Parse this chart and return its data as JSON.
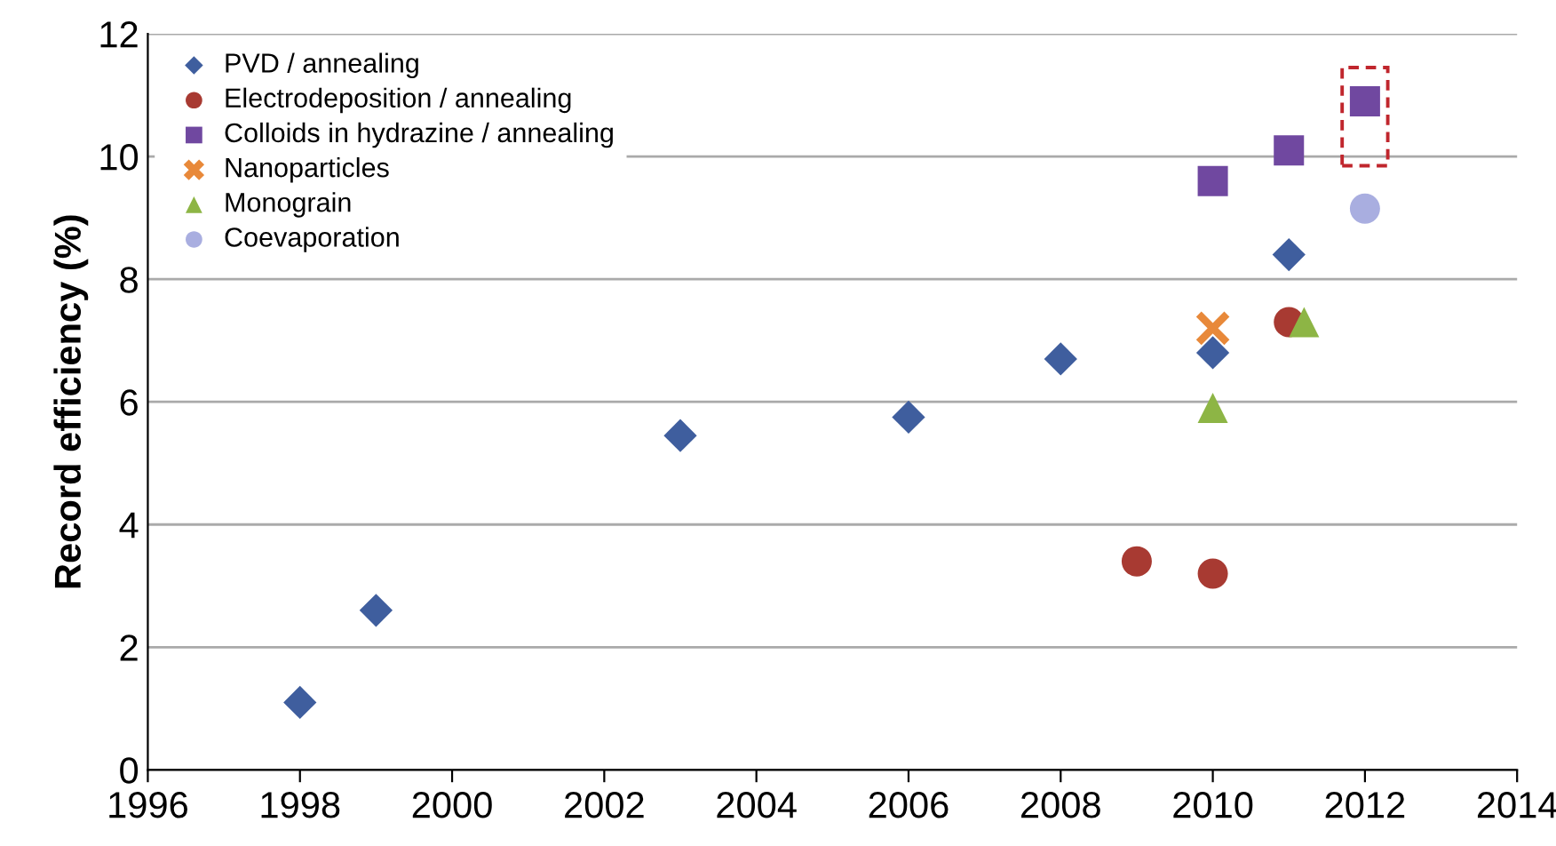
{
  "chart_data": {
    "type": "scatter",
    "ylabel": "Record efficiency (%)",
    "xlim": [
      1996,
      2014
    ],
    "xticks": [
      1996,
      1998,
      2000,
      2002,
      2004,
      2006,
      2008,
      2010,
      2012,
      2014
    ],
    "ylim": [
      0,
      12
    ],
    "yticks": [
      0,
      2,
      4,
      6,
      8,
      10,
      12
    ],
    "grid": "y",
    "legend": "top left",
    "series": [
      {
        "name": "PVD / annealing",
        "color": "#3f5e9e",
        "marker": "diamond",
        "x": [
          1998,
          1999,
          2003,
          2006,
          2008,
          2010,
          2011
        ],
        "values": [
          1.1,
          2.6,
          5.45,
          5.75,
          6.7,
          6.8,
          8.4
        ]
      },
      {
        "name": "Electrodeposition / annealing",
        "color": "#a83a32",
        "marker": "circle",
        "x": [
          2009,
          2010,
          2011
        ],
        "values": [
          3.4,
          3.2,
          7.3
        ]
      },
      {
        "name": "Colloids in hydrazine / annealing",
        "color": "#7048a0",
        "marker": "square",
        "x": [
          2010,
          2011,
          2012
        ],
        "values": [
          9.6,
          10.1,
          10.9
        ]
      },
      {
        "name": "Nanoparticles",
        "color": "#e8893a",
        "marker": "cross",
        "x": [
          2010
        ],
        "values": [
          7.2
        ]
      },
      {
        "name": "Monograin",
        "color": "#8db545",
        "marker": "triangle",
        "x": [
          2010,
          2011.2
        ],
        "values": [
          5.9,
          7.3
        ]
      },
      {
        "name": "Coevaporation",
        "color": "#a9aee0",
        "marker": "circle",
        "x": [
          2012
        ],
        "values": [
          9.15
        ]
      }
    ]
  }
}
